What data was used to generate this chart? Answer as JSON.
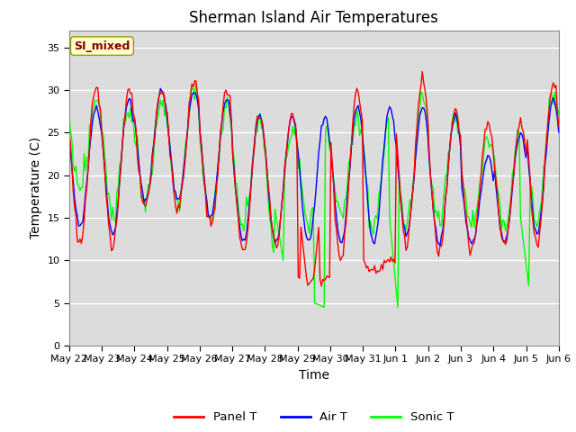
{
  "title": "Sherman Island Air Temperatures",
  "xlabel": "Time",
  "ylabel": "Temperature (C)",
  "ylim": [
    0,
    37
  ],
  "yticks": [
    0,
    5,
    10,
    15,
    20,
    25,
    30,
    35
  ],
  "annotation_text": "SI_mixed",
  "annotation_color": "#8B0000",
  "annotation_bg": "#FFFFCC",
  "legend_labels": [
    "Panel T",
    "Air T",
    "Sonic T"
  ],
  "line_colors": [
    "red",
    "blue",
    "lime"
  ],
  "plot_bg": "#DCDCDC",
  "x_tick_labels": [
    "May 22",
    "May 23",
    "May 24",
    "May 25",
    "May 26",
    "May 27",
    "May 28",
    "May 29",
    "May 30",
    "May 31",
    "Jun 1",
    "Jun 2",
    "Jun 3",
    "Jun 4",
    "Jun 5",
    "Jun 6"
  ],
  "title_fontsize": 12,
  "axis_fontsize": 10,
  "panel_T": [
    12,
    14,
    18,
    22,
    26,
    28,
    30,
    29,
    27,
    24,
    20,
    16,
    13,
    12,
    13,
    15,
    20,
    24,
    28,
    29,
    30,
    27,
    24,
    20,
    17,
    15,
    13,
    12,
    13,
    16,
    20,
    24,
    27,
    29,
    31,
    30,
    27,
    24,
    21,
    17,
    16,
    16,
    16,
    17,
    20,
    24,
    28,
    30,
    31,
    31,
    29,
    25,
    21,
    18,
    17,
    16,
    16,
    17,
    19,
    22,
    25,
    28,
    30,
    29,
    27,
    22,
    17,
    16,
    15,
    14,
    14,
    15,
    17,
    20,
    22,
    24,
    26,
    27,
    27,
    23,
    20,
    17,
    15,
    13,
    12,
    12,
    13,
    15,
    17,
    20,
    23,
    26,
    27,
    25,
    20,
    15,
    12,
    11,
    10,
    9,
    8,
    8,
    9,
    11,
    14,
    18,
    22,
    26,
    28,
    28,
    27,
    22,
    17,
    14,
    12,
    11,
    11,
    12,
    14,
    17,
    21,
    25,
    28,
    29,
    30,
    28,
    24,
    19,
    14,
    11,
    10,
    9,
    9,
    10,
    11,
    13,
    16,
    20,
    24,
    27,
    28,
    27,
    23,
    18,
    14,
    12,
    12,
    13,
    15,
    19,
    23,
    27,
    30,
    31,
    29,
    26,
    22,
    18,
    15,
    13,
    12,
    12,
    13,
    14,
    17,
    20,
    24,
    27,
    28,
    27,
    23,
    18,
    14,
    12,
    11,
    11,
    12,
    13,
    15,
    18,
    21,
    24,
    26,
    25,
    22,
    18,
    14,
    12,
    11,
    11,
    12,
    14,
    17,
    20,
    23,
    25,
    26,
    25,
    22,
    18,
    15,
    13,
    12,
    12,
    13,
    15,
    18,
    22,
    26,
    29,
    30,
    30,
    28,
    24,
    19,
    15
  ],
  "air_T": [
    14,
    16,
    19,
    23,
    26,
    27,
    28,
    28,
    26,
    23,
    19,
    16,
    14,
    13,
    14,
    16,
    21,
    25,
    28,
    29,
    29,
    27,
    23,
    19,
    17,
    15,
    14,
    13,
    14,
    17,
    21,
    25,
    27,
    29,
    30,
    30,
    27,
    23,
    20,
    18,
    17,
    17,
    17,
    18,
    21,
    25,
    28,
    30,
    30,
    30,
    28,
    25,
    22,
    19,
    18,
    17,
    17,
    18,
    20,
    23,
    26,
    28,
    29,
    29,
    26,
    22,
    18,
    17,
    16,
    15,
    15,
    16,
    18,
    21,
    23,
    25,
    27,
    27,
    26,
    23,
    20,
    18,
    16,
    14,
    13,
    13,
    14,
    16,
    18,
    21,
    24,
    27,
    27,
    24,
    20,
    16,
    13,
    12,
    12,
    12,
    13,
    14,
    16,
    19,
    22,
    26,
    27,
    27,
    27,
    25,
    21,
    17,
    14,
    13,
    12,
    13,
    14,
    16,
    19,
    22,
    25,
    27,
    28,
    28,
    27,
    23,
    19,
    15,
    13,
    12,
    12,
    12,
    13,
    15,
    17,
    20,
    23,
    26,
    27,
    28,
    27,
    23,
    19,
    15,
    13,
    13,
    14,
    16,
    20,
    23,
    26,
    28,
    28,
    27,
    25,
    22,
    19,
    16,
    14,
    13,
    13,
    14,
    15,
    18,
    21,
    24,
    27,
    27,
    26,
    23,
    19,
    15,
    13,
    12,
    12,
    13,
    14,
    16,
    19,
    22,
    24,
    25,
    24,
    22,
    18,
    15,
    13,
    12,
    12,
    13,
    15,
    18,
    21,
    23,
    25,
    26,
    25,
    22,
    19,
    16,
    14,
    13,
    13,
    14,
    16,
    19,
    22,
    25,
    28,
    29,
    29,
    27,
    24,
    20,
    16
  ],
  "sonic_T": [
    18,
    19,
    22,
    25,
    27,
    28,
    29,
    28,
    26,
    23,
    20,
    17,
    15,
    14,
    15,
    17,
    22,
    26,
    28,
    29,
    29,
    27,
    24,
    21,
    18,
    16,
    15,
    14,
    15,
    18,
    22,
    26,
    28,
    29,
    29,
    28,
    26,
    24,
    21,
    19,
    18,
    17,
    17,
    18,
    21,
    25,
    28,
    30,
    30,
    29,
    27,
    25,
    22,
    20,
    19,
    18,
    17,
    18,
    20,
    23,
    25,
    27,
    28,
    27,
    25,
    21,
    19,
    17,
    16,
    15,
    15,
    16,
    18,
    20,
    22,
    24,
    26,
    27,
    26,
    23,
    21,
    19,
    17,
    15,
    14,
    14,
    14,
    16,
    18,
    21,
    24,
    26,
    25,
    22,
    18,
    15,
    12,
    10,
    10,
    10,
    12,
    14,
    17,
    20,
    23,
    26,
    26,
    26,
    26,
    24,
    21,
    18,
    15,
    14,
    14,
    15,
    17,
    19,
    22,
    25,
    27,
    27,
    27,
    27,
    26,
    23,
    20,
    17,
    15,
    14,
    14,
    15,
    16,
    18,
    21,
    23,
    26,
    27,
    27,
    27,
    26,
    23,
    20,
    17,
    15,
    14,
    15,
    17,
    21,
    24,
    27,
    29,
    29,
    28,
    26,
    24,
    21,
    18,
    16,
    15,
    15,
    16,
    17,
    19,
    22,
    25,
    27,
    27,
    26,
    24,
    21,
    17,
    15,
    14,
    14,
    15,
    16,
    18,
    21,
    23,
    25,
    25,
    24,
    22,
    19,
    16,
    14,
    14,
    14,
    15,
    17,
    19,
    22,
    24,
    26,
    26,
    25,
    23,
    20,
    17,
    15,
    14,
    14,
    15,
    17,
    20,
    23,
    26,
    29,
    30,
    30,
    28,
    25,
    22,
    18
  ]
}
